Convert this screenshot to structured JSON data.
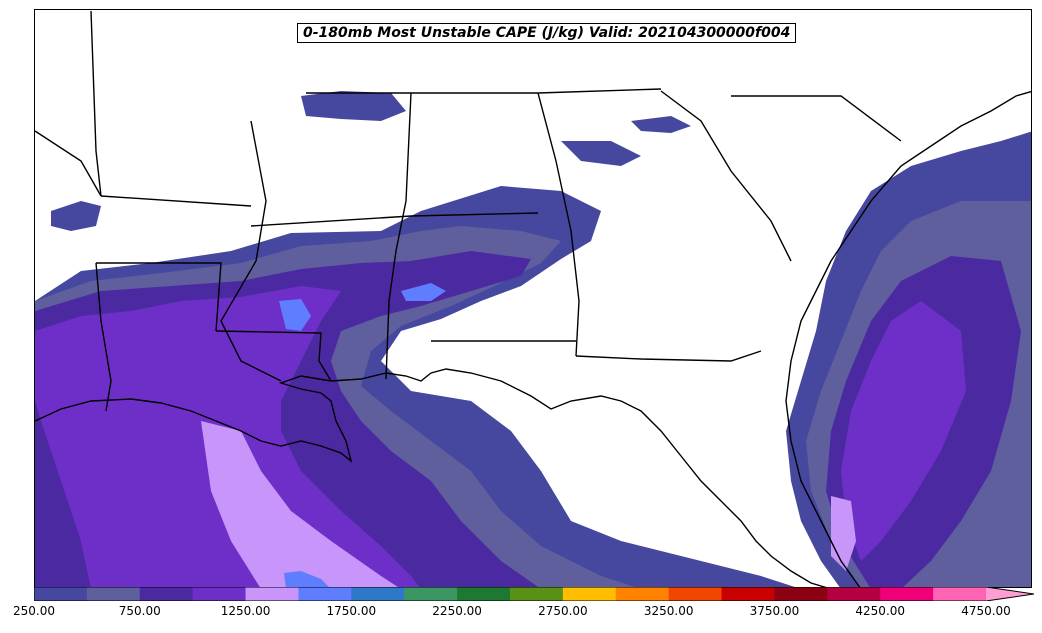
{
  "title": "0-180mb Most Unstable CAPE (J/kg) Valid: 202104300000f004",
  "colorbar": {
    "colors": [
      "#46479e",
      "#5f5f9e",
      "#4b2aa1",
      "#6e2fc8",
      "#c896fa",
      "#5f7dff",
      "#2f78c8",
      "#3c9664",
      "#1e7832",
      "#5a9114",
      "#ffbe00",
      "#ff8200",
      "#f04600",
      "#c80000",
      "#8c0014",
      "#b40040",
      "#f00078",
      "#ff64b4",
      "#ff9ed2"
    ],
    "tick_labels": [
      "250.00",
      "750.00",
      "1250.00",
      "1750.00",
      "2250.00",
      "2750.00",
      "3250.00",
      "3750.00",
      "4250.00",
      "4750.00"
    ],
    "min": 250,
    "max": 4750,
    "step": 250,
    "extend": "max"
  },
  "map": {
    "region": "Southeastern United States",
    "fill_levels": {
      "level_250": "#46479e",
      "level_500": "#5f5f9e",
      "level_750": "#4b2aa1",
      "level_1000": "#6e2fc8",
      "level_1250": "#c896fa",
      "level_1500": "#5f7dff"
    }
  }
}
